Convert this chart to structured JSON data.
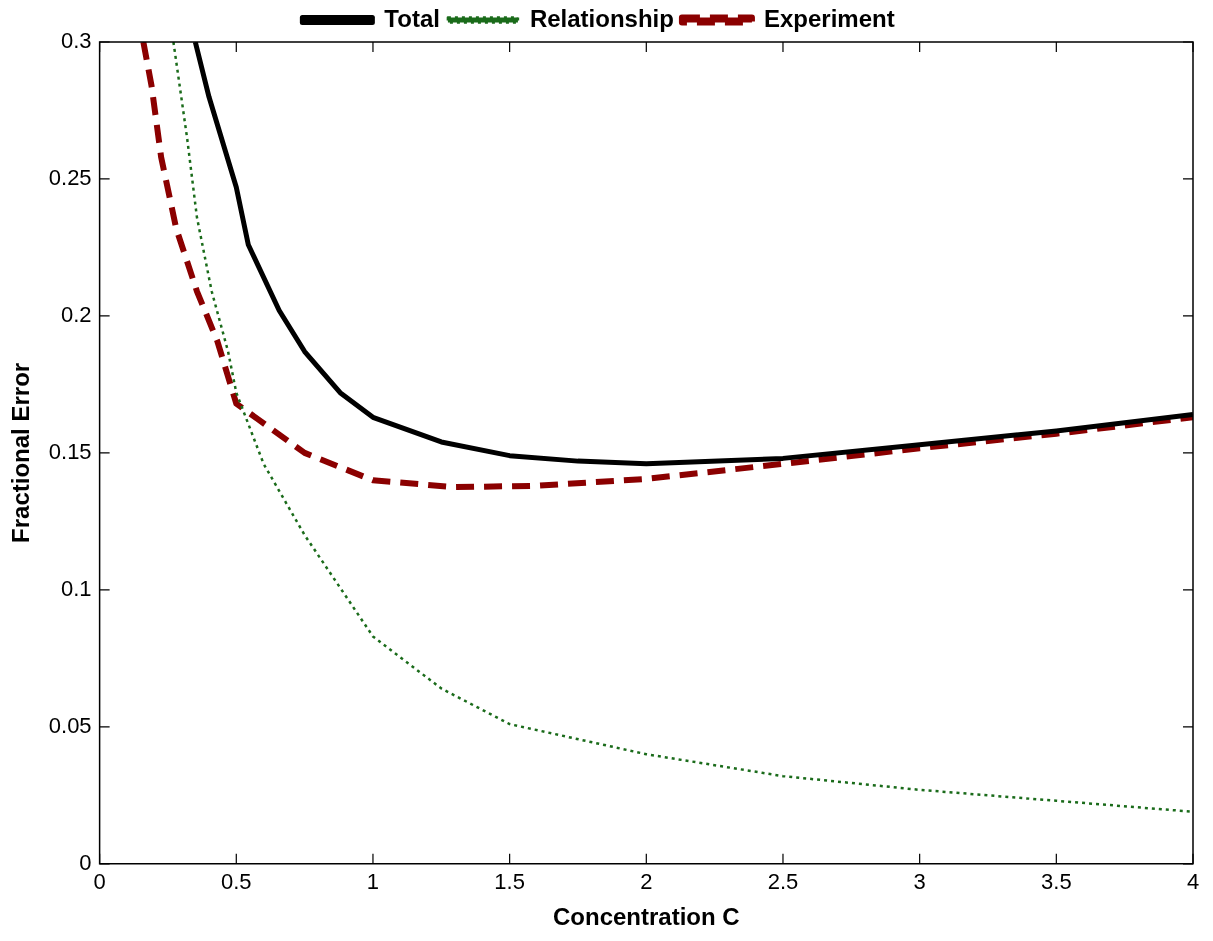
{
  "chart_data": {
    "type": "line",
    "xlabel": "Concentration C",
    "ylabel": "Fractional Error",
    "xlim": [
      0,
      4
    ],
    "xticks": [
      0,
      0.5,
      1,
      1.5,
      2,
      2.5,
      3,
      3.5,
      4
    ],
    "ylim": [
      0,
      0.3
    ],
    "yticks": [
      0,
      0.05,
      0.1,
      0.15,
      0.2,
      0.25,
      0.3
    ],
    "legend": "top",
    "marker": "none",
    "series": [
      {
        "name": "Total",
        "color": "#000000",
        "line_style": "solid",
        "x": [
          0.35,
          0.4,
          0.5,
          0.544,
          0.657,
          0.75,
          0.88,
          1,
          1.25,
          1.5,
          1.75,
          2,
          2.5,
          3,
          3.5,
          4
        ],
        "values": [
          0.3,
          0.28,
          0.247,
          0.226,
          0.202,
          0.187,
          0.172,
          0.163,
          0.154,
          0.149,
          0.147,
          0.146,
          0.148,
          0.153,
          0.158,
          0.164
        ]
      },
      {
        "name": "Relationship",
        "color": "#1a6b1a",
        "line_style": "dotted",
        "x": [
          0.27,
          0.32,
          0.356,
          0.41,
          0.47,
          0.5,
          0.6,
          0.75,
          1,
          1.25,
          1.5,
          2,
          2.5,
          3,
          3.5,
          4
        ],
        "values": [
          0.3,
          0.265,
          0.236,
          0.209,
          0.187,
          0.172,
          0.146,
          0.12,
          0.083,
          0.064,
          0.051,
          0.04,
          0.032,
          0.027,
          0.023,
          0.019
        ]
      },
      {
        "name": "Experiment",
        "color": "#8b0000",
        "line_style": "dashed",
        "x": [
          0.16,
          0.19,
          0.225,
          0.28,
          0.356,
          0.43,
          0.5,
          0.75,
          1,
          1.3,
          1.6,
          2,
          2.5,
          3,
          3.5,
          4
        ],
        "values": [
          0.3,
          0.284,
          0.258,
          0.232,
          0.209,
          0.191,
          0.168,
          0.15,
          0.14,
          0.1375,
          0.138,
          0.1405,
          0.146,
          0.1517,
          0.157,
          0.163
        ]
      }
    ]
  }
}
